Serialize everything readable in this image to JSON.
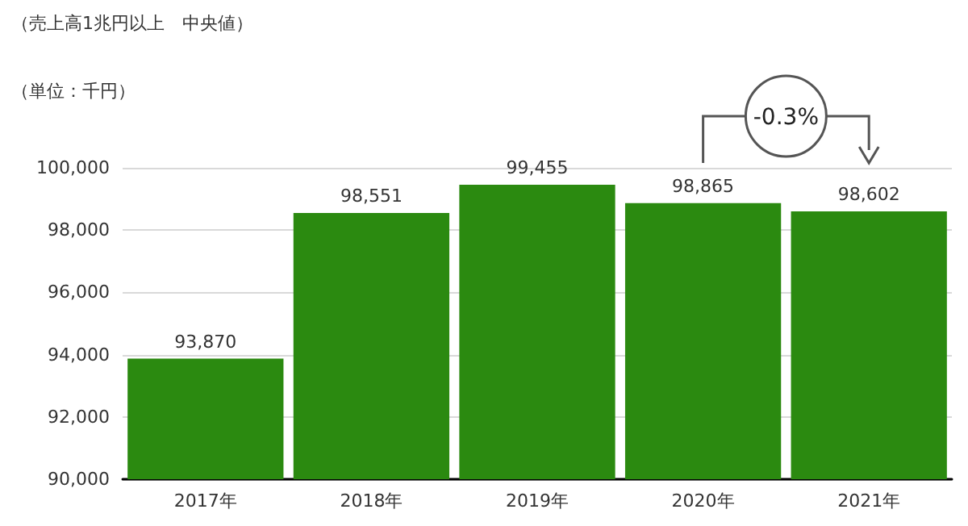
{
  "chart_data": {
    "type": "bar",
    "title": "（売上高1兆円以上　中央値）",
    "ylabel": "（単位：千円）",
    "categories": [
      "2017年",
      "2018年",
      "2019年",
      "2020年",
      "2021年"
    ],
    "values": [
      93870,
      98551,
      99455,
      98865,
      98602
    ],
    "value_labels": [
      "93,870",
      "98,551",
      "99,455",
      "98,865",
      "98,602"
    ],
    "color": "#2b8a10",
    "ylim": [
      90000,
      100000
    ],
    "yticks": [
      {
        "value": 90000,
        "label": "90,000"
      },
      {
        "value": 92000,
        "label": "92,000"
      },
      {
        "value": 94000,
        "label": "94,000"
      },
      {
        "value": 96000,
        "label": "96,000"
      },
      {
        "value": 98000,
        "label": "98,000"
      },
      {
        "value": 100000,
        "label": "100,000"
      }
    ],
    "grid": "y",
    "annotations": [
      "-0.3%"
    ]
  }
}
